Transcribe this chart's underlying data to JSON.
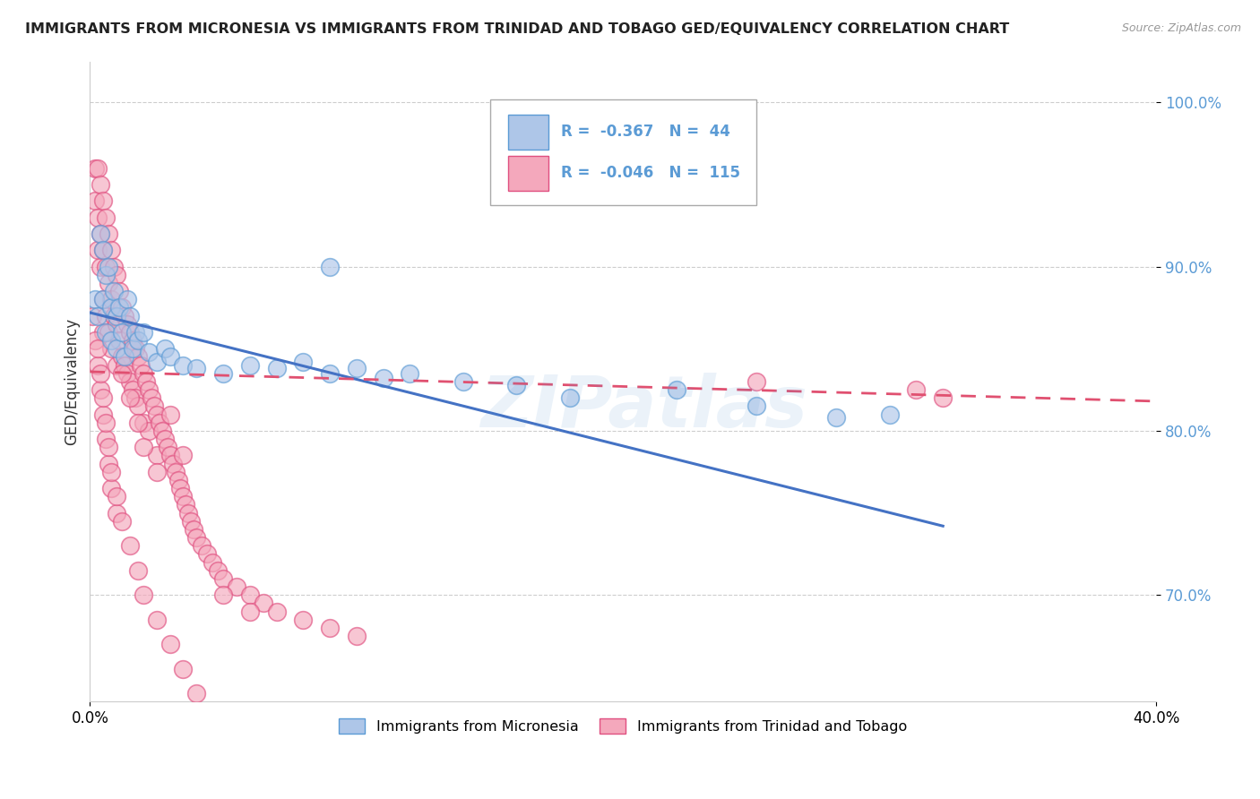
{
  "title": "IMMIGRANTS FROM MICRONESIA VS IMMIGRANTS FROM TRINIDAD AND TOBAGO GED/EQUIVALENCY CORRELATION CHART",
  "source": "Source: ZipAtlas.com",
  "ylabel": "GED/Equivalency",
  "xlim": [
    0.0,
    0.4
  ],
  "ylim": [
    0.635,
    1.025
  ],
  "yticks": [
    0.7,
    0.8,
    0.9,
    1.0
  ],
  "ytick_labels": [
    "70.0%",
    "80.0%",
    "90.0%",
    "100.0%"
  ],
  "xticks": [
    0.0,
    0.4
  ],
  "xtick_labels": [
    "0.0%",
    "40.0%"
  ],
  "blue_R": -0.367,
  "blue_N": 44,
  "pink_R": -0.046,
  "pink_N": 115,
  "blue_label": "Immigrants from Micronesia",
  "pink_label": "Immigrants from Trinidad and Tobago",
  "blue_edge": "#5b9bd5",
  "blue_fill": "#aec6e8",
  "pink_edge": "#e05080",
  "pink_fill": "#f4a8bc",
  "blue_line": "#4472c4",
  "pink_line": "#e05070",
  "watermark": "ZIPatlas",
  "background_color": "#ffffff",
  "grid_color": "#c8c8c8",
  "blue_trend_x0": 0.0,
  "blue_trend_y0": 0.872,
  "blue_trend_x1": 0.32,
  "blue_trend_y1": 0.742,
  "pink_trend_x0": 0.0,
  "pink_trend_y0": 0.836,
  "pink_trend_x1": 0.4,
  "pink_trend_y1": 0.818,
  "blue_scatter_x": [
    0.002,
    0.003,
    0.004,
    0.005,
    0.005,
    0.006,
    0.006,
    0.007,
    0.008,
    0.008,
    0.009,
    0.01,
    0.01,
    0.011,
    0.012,
    0.013,
    0.014,
    0.015,
    0.016,
    0.017,
    0.018,
    0.02,
    0.022,
    0.025,
    0.028,
    0.03,
    0.035,
    0.04,
    0.05,
    0.06,
    0.07,
    0.08,
    0.09,
    0.1,
    0.11,
    0.12,
    0.14,
    0.16,
    0.18,
    0.22,
    0.25,
    0.3,
    0.09,
    0.28
  ],
  "blue_scatter_y": [
    0.88,
    0.87,
    0.92,
    0.91,
    0.88,
    0.895,
    0.86,
    0.9,
    0.875,
    0.855,
    0.885,
    0.87,
    0.85,
    0.875,
    0.86,
    0.845,
    0.88,
    0.87,
    0.85,
    0.86,
    0.855,
    0.86,
    0.848,
    0.842,
    0.85,
    0.845,
    0.84,
    0.838,
    0.835,
    0.84,
    0.838,
    0.842,
    0.835,
    0.838,
    0.832,
    0.835,
    0.83,
    0.828,
    0.82,
    0.825,
    0.815,
    0.81,
    0.9,
    0.808
  ],
  "pink_scatter_x": [
    0.001,
    0.002,
    0.002,
    0.003,
    0.003,
    0.003,
    0.004,
    0.004,
    0.004,
    0.005,
    0.005,
    0.005,
    0.005,
    0.006,
    0.006,
    0.006,
    0.007,
    0.007,
    0.007,
    0.008,
    0.008,
    0.008,
    0.009,
    0.009,
    0.01,
    0.01,
    0.01,
    0.011,
    0.011,
    0.012,
    0.012,
    0.013,
    0.013,
    0.014,
    0.014,
    0.015,
    0.015,
    0.016,
    0.016,
    0.017,
    0.017,
    0.018,
    0.018,
    0.019,
    0.02,
    0.02,
    0.021,
    0.022,
    0.022,
    0.023,
    0.024,
    0.025,
    0.025,
    0.026,
    0.027,
    0.028,
    0.029,
    0.03,
    0.03,
    0.031,
    0.032,
    0.033,
    0.034,
    0.035,
    0.035,
    0.036,
    0.037,
    0.038,
    0.039,
    0.04,
    0.042,
    0.044,
    0.046,
    0.048,
    0.05,
    0.055,
    0.06,
    0.065,
    0.07,
    0.08,
    0.09,
    0.1,
    0.002,
    0.003,
    0.004,
    0.005,
    0.006,
    0.007,
    0.008,
    0.01,
    0.012,
    0.015,
    0.018,
    0.02,
    0.025,
    0.003,
    0.004,
    0.005,
    0.006,
    0.007,
    0.008,
    0.01,
    0.012,
    0.015,
    0.018,
    0.02,
    0.025,
    0.03,
    0.035,
    0.04,
    0.05,
    0.06,
    0.25,
    0.31,
    0.32
  ],
  "pink_scatter_y": [
    0.87,
    0.96,
    0.94,
    0.96,
    0.93,
    0.91,
    0.95,
    0.92,
    0.9,
    0.94,
    0.91,
    0.88,
    0.86,
    0.93,
    0.9,
    0.87,
    0.92,
    0.89,
    0.86,
    0.91,
    0.88,
    0.85,
    0.9,
    0.87,
    0.895,
    0.865,
    0.84,
    0.885,
    0.855,
    0.875,
    0.845,
    0.87,
    0.84,
    0.865,
    0.835,
    0.86,
    0.83,
    0.855,
    0.825,
    0.85,
    0.82,
    0.845,
    0.815,
    0.84,
    0.835,
    0.805,
    0.83,
    0.825,
    0.8,
    0.82,
    0.815,
    0.81,
    0.785,
    0.805,
    0.8,
    0.795,
    0.79,
    0.785,
    0.81,
    0.78,
    0.775,
    0.77,
    0.765,
    0.76,
    0.785,
    0.755,
    0.75,
    0.745,
    0.74,
    0.735,
    0.73,
    0.725,
    0.72,
    0.715,
    0.71,
    0.705,
    0.7,
    0.695,
    0.69,
    0.685,
    0.68,
    0.675,
    0.855,
    0.84,
    0.825,
    0.81,
    0.795,
    0.78,
    0.765,
    0.75,
    0.835,
    0.82,
    0.805,
    0.79,
    0.775,
    0.85,
    0.835,
    0.82,
    0.805,
    0.79,
    0.775,
    0.76,
    0.745,
    0.73,
    0.715,
    0.7,
    0.685,
    0.67,
    0.655,
    0.64,
    0.7,
    0.69,
    0.83,
    0.825,
    0.82
  ]
}
